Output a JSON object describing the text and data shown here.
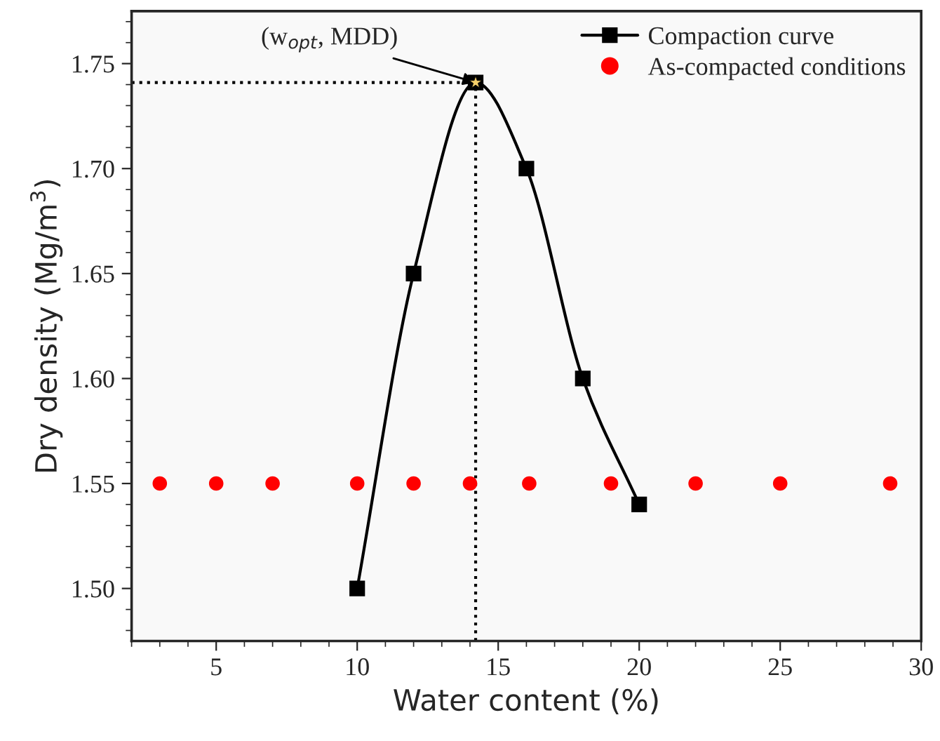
{
  "chart_data": {
    "type": "line",
    "xlabel": "Water content (%)",
    "ylabel": "Dry density (Mg/m$^{3}$)",
    "series": [
      {
        "name": "Compaction curve",
        "color": "#000000",
        "marker": "square",
        "x": [
          10,
          12,
          14.2,
          16,
          18,
          20
        ],
        "values": [
          1.5,
          1.65,
          1.741,
          1.7,
          1.6,
          1.54
        ]
      },
      {
        "type": "scatter",
        "color": "#f5d06a",
        "marker": "star",
        "x": [
          14.2
        ],
        "values": [
          1.741
        ]
      },
      {
        "name": "As-compacted conditions",
        "type": "scatter",
        "color": "#ff0000",
        "marker": "circle",
        "x": [
          3,
          5,
          7,
          10,
          12,
          14,
          16.1,
          19,
          22,
          25,
          28.9
        ],
        "values": [
          1.55,
          1.55,
          1.55,
          1.55,
          1.55,
          1.55,
          1.55,
          1.55,
          1.55,
          1.55,
          1.55
        ]
      }
    ],
    "ref_lines": [
      {
        "axis": "x",
        "value": 14.2,
        "line_style": "dotted",
        "color": "#000000"
      },
      {
        "axis": "y",
        "value": 1.741,
        "line_style": "dotted",
        "color": "#000000"
      }
    ],
    "annotations": [
      {
        "text": "(w$_{opt}$, MDD)",
        "x": 14.2,
        "y": 1.741
      }
    ],
    "xlim": [
      2,
      30
    ],
    "xticks": [
      5,
      10,
      15,
      20,
      25,
      30
    ],
    "ylim": [
      1.475,
      1.775
    ],
    "yticks": [
      {
        "value": 1.5,
        "label": "1.50"
      },
      {
        "value": 1.55,
        "label": "1.55"
      },
      {
        "value": 1.6,
        "label": "1.60"
      },
      {
        "value": 1.65,
        "label": "1.65"
      },
      {
        "value": 1.7,
        "label": "1.70"
      },
      {
        "value": 1.75,
        "label": "1.75"
      }
    ],
    "legend": "top right",
    "grid": false
  }
}
